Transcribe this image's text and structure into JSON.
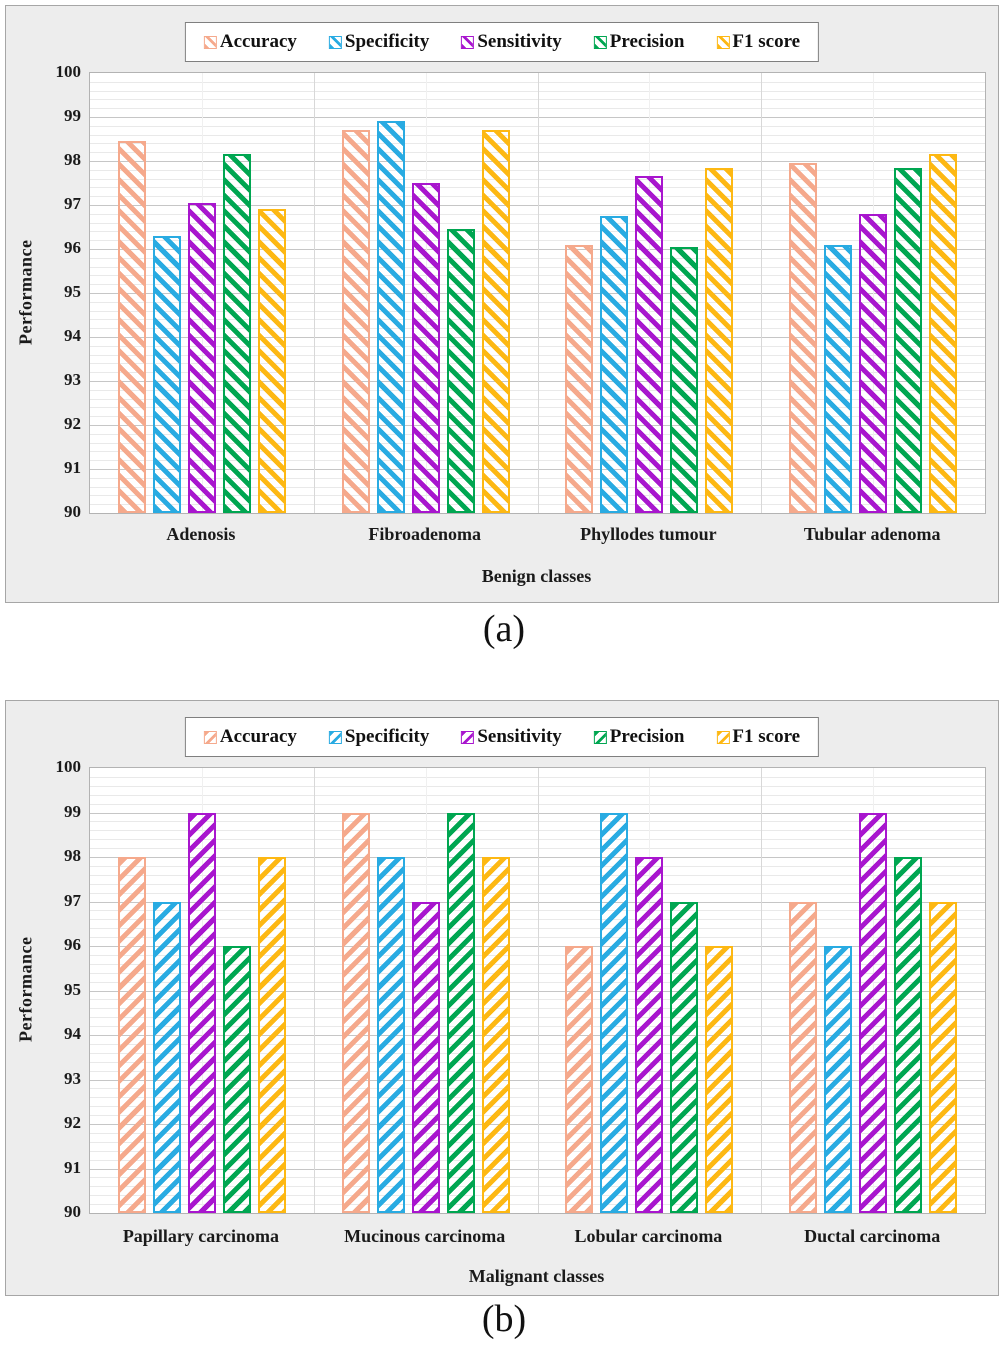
{
  "captions": {
    "a": "(a)",
    "b": "(b)"
  },
  "chart_data": [
    {
      "type": "bar",
      "panel": "a",
      "xlabel": "Benign classes",
      "ylabel": "Performance",
      "ylim": [
        90,
        100
      ],
      "ytick_step": 1,
      "yticks": [
        100,
        99,
        98,
        97,
        96,
        95,
        94,
        93,
        92,
        91,
        90
      ],
      "grid": "on",
      "legend_position": "top-center",
      "hatch_direction": "backslash",
      "categories": [
        "Adenosis",
        "Fibroadenoma",
        "Phyllodes tumour",
        "Tubular adenoma"
      ],
      "series": [
        {
          "name": "Accuracy",
          "color": "#F5A98C",
          "values": [
            98.45,
            98.7,
            96.1,
            97.95
          ]
        },
        {
          "name": "Specificity",
          "color": "#29ABE2",
          "values": [
            96.3,
            98.9,
            96.75,
            96.1
          ]
        },
        {
          "name": "Sensitivity",
          "color": "#A816CE",
          "values": [
            97.05,
            97.5,
            97.65,
            96.8
          ]
        },
        {
          "name": "Precision",
          "color": "#00A651",
          "values": [
            98.15,
            96.45,
            96.05,
            97.85
          ]
        },
        {
          "name": "F1 score",
          "color": "#FDB813",
          "values": [
            96.9,
            98.7,
            97.85,
            98.15
          ]
        }
      ]
    },
    {
      "type": "bar",
      "panel": "b",
      "xlabel": "Malignant classes",
      "ylabel": "Performance",
      "ylim": [
        90,
        100
      ],
      "ytick_step": 1,
      "yticks": [
        100,
        99,
        98,
        97,
        96,
        95,
        94,
        93,
        92,
        91,
        90
      ],
      "grid": "on",
      "legend_position": "top-center",
      "hatch_direction": "slash",
      "categories": [
        "Papillary carcinoma",
        "Mucinous carcinoma",
        "Lobular carcinoma",
        "Ductal carcinoma"
      ],
      "series": [
        {
          "name": "Accuracy",
          "color": "#F5A98C",
          "values": [
            98,
            99,
            96,
            97
          ]
        },
        {
          "name": "Specificity",
          "color": "#29ABE2",
          "values": [
            97,
            98,
            99,
            96
          ]
        },
        {
          "name": "Sensitivity",
          "color": "#A816CE",
          "values": [
            99,
            97,
            98,
            99
          ]
        },
        {
          "name": "Precision",
          "color": "#00A651",
          "values": [
            96,
            99,
            97,
            98
          ]
        },
        {
          "name": "F1 score",
          "color": "#FDB813",
          "values": [
            98,
            98,
            96,
            97
          ]
        }
      ]
    }
  ]
}
